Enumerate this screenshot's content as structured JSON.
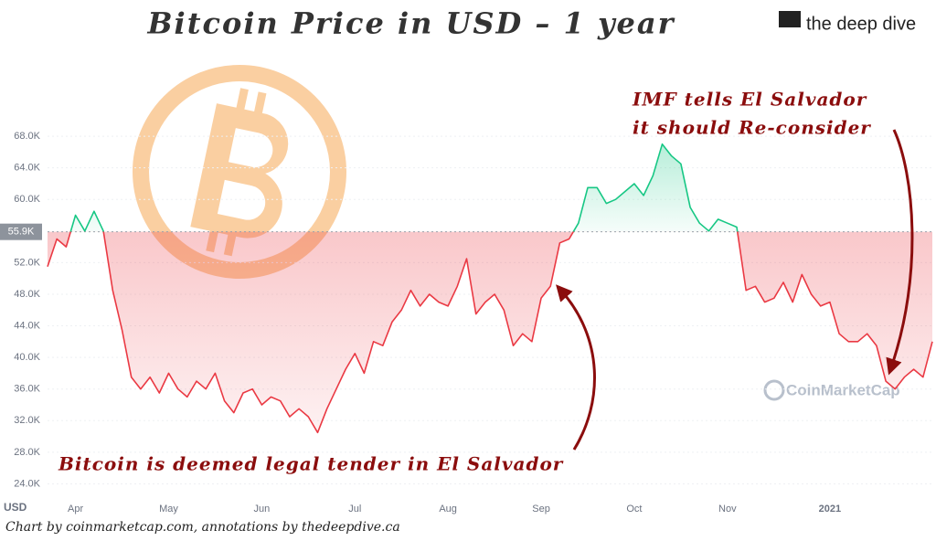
{
  "chart_data": {
    "type": "line",
    "title": "Bitcoin Price in USD – 1 year",
    "brand": "the deep dive",
    "watermark": "CoinMarketCap",
    "currency_label": "USD",
    "footer": "Chart by coinmarketcap.com, annotations by thedeepdive.ca",
    "annotations": [
      {
        "text": [
          "IMF tells El Salvador",
          "it should Re-consider"
        ]
      },
      {
        "text": [
          "Bitcoin is deemed legal tender in El Salvador"
        ]
      }
    ],
    "reference": {
      "value": 55900,
      "label": "55.9K"
    },
    "colors": {
      "above": "#16c784",
      "below": "#ea3943"
    },
    "grid": true,
    "ylim": [
      22200,
      73100
    ],
    "yticks": [
      {
        "value": 24000,
        "label": "24.0K"
      },
      {
        "value": 28000,
        "label": "28.0K"
      },
      {
        "value": 32000,
        "label": "32.0K"
      },
      {
        "value": 36000,
        "label": "36.0K"
      },
      {
        "value": 40000,
        "label": "40.0K"
      },
      {
        "value": 44000,
        "label": "44.0K"
      },
      {
        "value": 48000,
        "label": "48.0K"
      },
      {
        "value": 52000,
        "label": "52.0K"
      },
      {
        "value": 60000,
        "label": "60.0K"
      },
      {
        "value": 64000,
        "label": "64.0K"
      },
      {
        "value": 68000,
        "label": "68.0K"
      }
    ],
    "categories": [
      null,
      null,
      null,
      "Apr",
      null,
      null,
      null,
      null,
      null,
      null,
      null,
      null,
      null,
      "May",
      null,
      null,
      null,
      null,
      null,
      null,
      null,
      null,
      null,
      "Jun",
      null,
      null,
      null,
      null,
      null,
      null,
      null,
      null,
      null,
      "Jul",
      null,
      null,
      null,
      null,
      null,
      null,
      null,
      null,
      null,
      "Aug",
      null,
      null,
      null,
      null,
      null,
      null,
      null,
      null,
      null,
      "Sep",
      null,
      null,
      null,
      null,
      null,
      null,
      null,
      null,
      null,
      "Oct",
      null,
      null,
      null,
      null,
      null,
      null,
      null,
      null,
      null,
      "Nov",
      null,
      null,
      null,
      null,
      null,
      null,
      null,
      null,
      null,
      null,
      "2021",
      null,
      null,
      null,
      null,
      null,
      null,
      null,
      null,
      null,
      null,
      null
    ],
    "values": [
      51500,
      55000,
      54000,
      58000,
      56000,
      58500,
      56000,
      48500,
      43500,
      37500,
      36000,
      37500,
      35500,
      38000,
      36000,
      35000,
      37000,
      36000,
      38000,
      34500,
      33000,
      35500,
      36000,
      34000,
      35000,
      34500,
      32500,
      33500,
      32500,
      30500,
      33500,
      36000,
      38500,
      40500,
      38000,
      42000,
      41500,
      44500,
      46000,
      48500,
      46500,
      48000,
      47000,
      46500,
      49000,
      52500,
      45500,
      47000,
      48000,
      46000,
      41500,
      43000,
      42000,
      47500,
      49000,
      54500,
      55000,
      57000,
      61500,
      61500,
      59500,
      60000,
      61000,
      62000,
      60500,
      63000,
      67000,
      65500,
      64500,
      59000,
      57000,
      56000,
      57500,
      57000,
      56500,
      48500,
      49000,
      47000,
      47500,
      49500,
      47000,
      50500,
      48000,
      46500,
      47000,
      43000,
      42000,
      42000,
      43000,
      41500,
      37000,
      36000,
      37500,
      38500,
      37500,
      42000
    ]
  }
}
